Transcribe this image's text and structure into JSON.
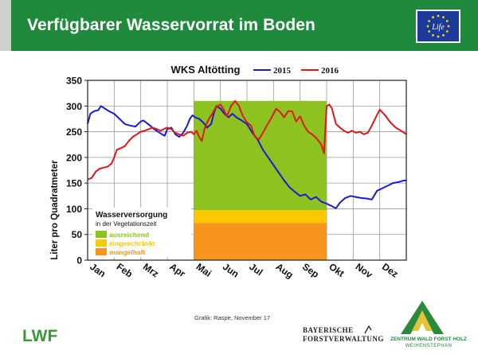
{
  "header": {
    "title": "Verfügbarer Wasservorrat im Boden",
    "eu_logo_text": "Life",
    "color": "#1f8a3b"
  },
  "footer": {
    "credit": "Grafik: Raspe, November 17",
    "lwf_logo": "LWF",
    "bayern_line1": "BAYERISCHE",
    "bayern_line2": "FORSTVERWALTUNG",
    "zw_line1": "ZENTRUM WALD FORST HOLZ",
    "zw_line2": "WEIHENSTEPHAN"
  },
  "chart_data": {
    "type": "line",
    "title": "WKS Altötting",
    "ylabel": "Liter pro Quadratmeter",
    "xlabel": "",
    "ylim": [
      0,
      350
    ],
    "yticks": [
      0,
      50,
      100,
      150,
      200,
      250,
      300,
      350
    ],
    "categories": [
      "Jan",
      "Feb",
      "Mrz",
      "Apr",
      "Mai",
      "Jun",
      "Jul",
      "Aug",
      "Sep",
      "Okt",
      "Nov",
      "Dez"
    ],
    "grid": true,
    "legend_position": "top",
    "series": [
      {
        "name": "2015",
        "color": "#1a1adb",
        "x": [
          0,
          0.1,
          0.25,
          0.4,
          0.5,
          0.65,
          0.8,
          1.0,
          1.2,
          1.4,
          1.6,
          1.8,
          2.0,
          2.1,
          2.2,
          2.35,
          2.5,
          2.65,
          2.8,
          2.9,
          3.0,
          3.15,
          3.3,
          3.45,
          3.6,
          3.75,
          3.85,
          3.95,
          4.05,
          4.2,
          4.35,
          4.5,
          4.65,
          4.75,
          4.85,
          5.0,
          5.15,
          5.3,
          5.45,
          5.6,
          5.8,
          6.0,
          6.2,
          6.4,
          6.6,
          6.8,
          7.0,
          7.2,
          7.4,
          7.6,
          7.8,
          8.0,
          8.2,
          8.4,
          8.6,
          8.8,
          9.0,
          9.2,
          9.35,
          9.5,
          9.7,
          9.9,
          10.1,
          10.3,
          10.5,
          10.7,
          10.9,
          11.1,
          11.3,
          11.5,
          11.7,
          11.9,
          12.0
        ],
        "values": [
          265,
          285,
          290,
          292,
          300,
          295,
          290,
          285,
          275,
          265,
          262,
          260,
          270,
          272,
          268,
          262,
          255,
          250,
          245,
          242,
          255,
          258,
          245,
          240,
          248,
          262,
          275,
          282,
          278,
          275,
          268,
          258,
          265,
          285,
          300,
          295,
          285,
          278,
          285,
          278,
          272,
          265,
          248,
          235,
          215,
          200,
          185,
          170,
          155,
          142,
          133,
          125,
          128,
          118,
          123,
          114,
          110,
          105,
          101,
          112,
          121,
          125,
          123,
          121,
          120,
          118,
          135,
          140,
          145,
          150,
          152,
          155,
          155
        ]
      },
      {
        "name": "2016",
        "color": "#e01818",
        "x": [
          0,
          0.15,
          0.3,
          0.45,
          0.6,
          0.75,
          0.9,
          1.0,
          1.1,
          1.25,
          1.4,
          1.55,
          1.7,
          1.85,
          2.0,
          2.15,
          2.3,
          2.45,
          2.6,
          2.75,
          2.9,
          3.0,
          3.15,
          3.3,
          3.45,
          3.6,
          3.75,
          3.9,
          4.0,
          4.1,
          4.2,
          4.3,
          4.4,
          4.5,
          4.6,
          4.7,
          4.8,
          4.9,
          5.0,
          5.1,
          5.25,
          5.4,
          5.55,
          5.7,
          5.85,
          6.0,
          6.15,
          6.3,
          6.45,
          6.6,
          6.75,
          6.9,
          7.0,
          7.1,
          7.25,
          7.4,
          7.55,
          7.7,
          7.85,
          8.0,
          8.15,
          8.3,
          8.45,
          8.6,
          8.7,
          8.8,
          8.9,
          9.0,
          9.1,
          9.2,
          9.35,
          9.5,
          9.65,
          9.8,
          9.95,
          10.1,
          10.25,
          10.4,
          10.55,
          10.7,
          10.85,
          11.0,
          11.2,
          11.4,
          11.6,
          11.8,
          12.0
        ],
        "values": [
          157,
          160,
          172,
          178,
          180,
          182,
          188,
          200,
          215,
          218,
          222,
          232,
          240,
          245,
          250,
          252,
          255,
          258,
          255,
          252,
          256,
          258,
          255,
          248,
          245,
          242,
          248,
          250,
          245,
          252,
          240,
          232,
          255,
          268,
          278,
          285,
          295,
          300,
          303,
          295,
          280,
          300,
          310,
          300,
          280,
          268,
          262,
          240,
          235,
          248,
          262,
          275,
          285,
          295,
          288,
          278,
          290,
          290,
          270,
          280,
          262,
          250,
          245,
          238,
          232,
          225,
          208,
          300,
          303,
          295,
          265,
          258,
          252,
          248,
          252,
          248,
          250,
          245,
          248,
          262,
          278,
          293,
          282,
          268,
          258,
          252,
          245
        ]
      }
    ],
    "vegetation_window": {
      "from_month_index": 4.0,
      "to_month_index": 9.0,
      "top_value": 310
    },
    "legend_box": {
      "title": "Wasserversorgung",
      "subtitle": "in der Vegetationszeit",
      "items": [
        {
          "label": "ausreichend",
          "color": "#8dc21f",
          "from": 97,
          "to": 310
        },
        {
          "label": "eingeschränkt",
          "color": "#ffc800",
          "from": 72,
          "to": 97
        },
        {
          "label": "mangelhaft",
          "color": "#f7941d",
          "from": 0,
          "to": 72
        }
      ]
    }
  }
}
